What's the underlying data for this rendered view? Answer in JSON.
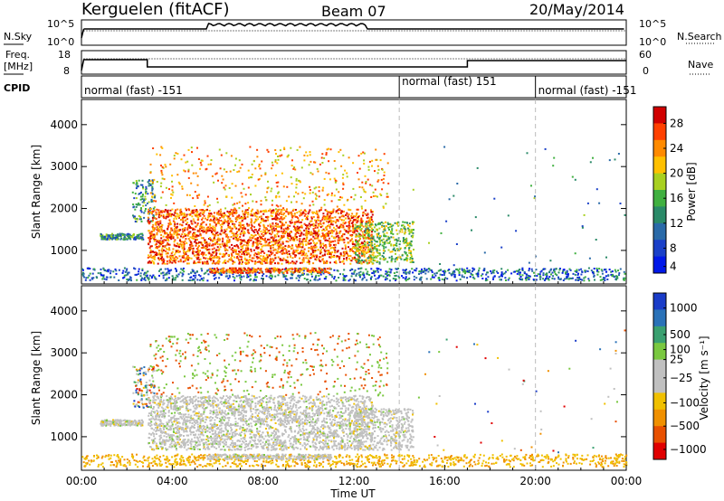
{
  "header": {
    "title": "Kerguelen (fitACF)",
    "beam": "Beam 07",
    "date": "20/May/2014"
  },
  "noise_panel": {
    "left_label": "N.Sky",
    "left_ticks": [
      "10^5",
      "10^0"
    ],
    "right_ticks": [
      "10^5",
      "10^0"
    ],
    "right_label": "N.Search"
  },
  "freq_panel": {
    "left_label_1": "Freq.",
    "left_label_2": "[MHz]",
    "left_ticks": [
      "18",
      "8"
    ],
    "right_ticks": [
      "60",
      "0"
    ],
    "right_label": "Nave"
  },
  "cpid": {
    "label": "CPID",
    "segments": [
      {
        "text": "normal (fast) -151",
        "start_hour": 0
      },
      {
        "text": "normal (fast) 151",
        "start_hour": 14
      },
      {
        "text": "normal (fast) -151",
        "start_hour": 20
      }
    ]
  },
  "x_axis": {
    "label": "Time UT",
    "ticks": [
      "00:00",
      "04:00",
      "08:00",
      "12:00",
      "16:00",
      "20:00",
      "00:00"
    ]
  },
  "chart_data": [
    {
      "type": "heatmap",
      "name": "power",
      "ylabel": "Slant Range [km]",
      "yticks": [
        "4000",
        "3000",
        "2000",
        "1000"
      ],
      "ylim": [
        200,
        4600
      ],
      "xlim": [
        0,
        24
      ],
      "colorbar": {
        "label": "Power [dB]",
        "ticks": [
          "28",
          "24",
          "20",
          "16",
          "12",
          "8",
          "4"
        ],
        "colors": [
          "#d00000",
          "#ff4000",
          "#ff8a00",
          "#ffc000",
          "#a8d020",
          "#40b040",
          "#2a8a68",
          "#2a6aa8",
          "#1a40c8",
          "#0018e8"
        ]
      }
    },
    {
      "type": "heatmap",
      "name": "velocity",
      "ylabel": "Slant Range [km]",
      "yticks": [
        "4000",
        "3000",
        "2000",
        "1000"
      ],
      "ylim": [
        200,
        4600
      ],
      "xlim": [
        0,
        24
      ],
      "colorbar": {
        "label": "Velocity [m s⁻¹]",
        "ticks": [
          "1000",
          "500",
          "100",
          "25",
          "−25",
          "−100",
          "−500",
          "−1000"
        ],
        "colors": [
          "#1a3cc8",
          "#2a72b8",
          "#3aa070",
          "#7ac840",
          "#c0c0c0",
          "#c0c0c0",
          "#f0c000",
          "#f09000",
          "#e85000",
          "#e00000"
        ]
      }
    }
  ]
}
